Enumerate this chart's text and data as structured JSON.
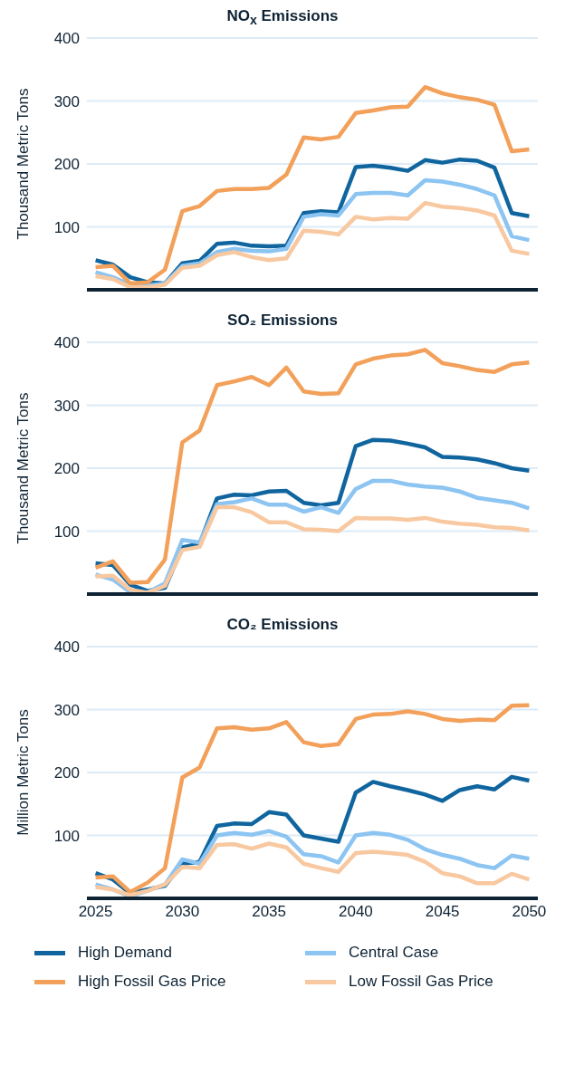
{
  "chart_data": [
    {
      "type": "line",
      "title": "NO$_{x}$ Emissions",
      "ylabel": "Thousand Metric Tons",
      "x": [
        2025,
        2026,
        2027,
        2028,
        2029,
        2030,
        2031,
        2032,
        2033,
        2034,
        2035,
        2036,
        2037,
        2038,
        2039,
        2040,
        2041,
        2042,
        2043,
        2044,
        2045,
        2046,
        2047,
        2048,
        2049,
        2050
      ],
      "xlim": [
        2024.5,
        2050.5
      ],
      "xticks": [
        2025,
        2030,
        2035,
        2040,
        2045,
        2050
      ],
      "ylim": [
        0,
        400
      ],
      "yticks": [
        100,
        200,
        300,
        400
      ],
      "grid": "y",
      "tick_labels": "y",
      "series": [
        {
          "color": "#10659f",
          "values": [
            47,
            40,
            20,
            12,
            10,
            42,
            46,
            73,
            75,
            70,
            69,
            70,
            122,
            125,
            123,
            195,
            197,
            194,
            189,
            206,
            202,
            207,
            205,
            194,
            122,
            117
          ]
        },
        {
          "color": "#8cc4f2",
          "values": [
            28,
            20,
            8,
            7,
            10,
            38,
            42,
            60,
            65,
            62,
            61,
            65,
            116,
            120,
            118,
            152,
            154,
            154,
            150,
            174,
            172,
            167,
            160,
            150,
            85,
            79
          ]
        },
        {
          "color": "#f2a05a",
          "values": [
            36,
            38,
            10,
            12,
            32,
            125,
            133,
            157,
            160,
            160,
            162,
            183,
            242,
            239,
            243,
            281,
            285,
            290,
            291,
            322,
            312,
            306,
            302,
            294,
            220,
            223
          ]
        },
        {
          "color": "#f8c8a0",
          "values": [
            22,
            17,
            4,
            4,
            8,
            35,
            38,
            55,
            60,
            52,
            47,
            50,
            94,
            92,
            88,
            116,
            112,
            114,
            113,
            138,
            132,
            130,
            126,
            118,
            62,
            57
          ]
        }
      ]
    },
    {
      "type": "line",
      "title": "SO₂ Emissions",
      "ylabel": "Thousand Metric Tons",
      "x": [
        2025,
        2026,
        2027,
        2028,
        2029,
        2030,
        2031,
        2032,
        2033,
        2034,
        2035,
        2036,
        2037,
        2038,
        2039,
        2040,
        2041,
        2042,
        2043,
        2044,
        2045,
        2046,
        2047,
        2048,
        2049,
        2050
      ],
      "xlim": [
        2024.5,
        2050.5
      ],
      "xticks": [
        2025,
        2030,
        2035,
        2040,
        2045,
        2050
      ],
      "ylim": [
        0,
        400
      ],
      "yticks": [
        100,
        200,
        300,
        400
      ],
      "grid": "y",
      "tick_labels": "y",
      "series": [
        {
          "color": "#10659f",
          "values": [
            49,
            46,
            15,
            5,
            10,
            74,
            80,
            152,
            158,
            157,
            163,
            164,
            145,
            141,
            145,
            235,
            245,
            244,
            239,
            233,
            218,
            217,
            214,
            208,
            200,
            196
          ]
        },
        {
          "color": "#8cc4f2",
          "values": [
            31,
            23,
            3,
            3,
            17,
            86,
            82,
            143,
            146,
            152,
            142,
            142,
            131,
            138,
            129,
            167,
            180,
            180,
            174,
            171,
            169,
            163,
            153,
            149,
            145,
            136
          ]
        },
        {
          "color": "#f2a05a",
          "values": [
            42,
            52,
            18,
            19,
            55,
            241,
            260,
            332,
            338,
            345,
            332,
            360,
            322,
            318,
            319,
            365,
            374,
            379,
            381,
            388,
            367,
            362,
            356,
            353,
            365,
            368
          ]
        },
        {
          "color": "#f8c8a0",
          "values": [
            28,
            29,
            7,
            2,
            13,
            70,
            75,
            138,
            138,
            130,
            114,
            114,
            103,
            102,
            100,
            121,
            120,
            120,
            118,
            121,
            115,
            112,
            110,
            106,
            105,
            101
          ]
        }
      ]
    },
    {
      "type": "line",
      "title": "CO₂ Emissions",
      "ylabel": "Million Metric Tons",
      "x": [
        2025,
        2026,
        2027,
        2028,
        2029,
        2030,
        2031,
        2032,
        2033,
        2034,
        2035,
        2036,
        2037,
        2038,
        2039,
        2040,
        2041,
        2042,
        2043,
        2044,
        2045,
        2046,
        2047,
        2048,
        2049,
        2050
      ],
      "xlim": [
        2024.5,
        2050.5
      ],
      "xticks": [
        2025,
        2030,
        2035,
        2040,
        2045,
        2050
      ],
      "ylim": [
        0,
        400
      ],
      "yticks": [
        100,
        200,
        300,
        400
      ],
      "grid": "y",
      "legend": "bottom",
      "series": [
        {
          "name": "High Demand",
          "color": "#10659f",
          "values": [
            40,
            30,
            8,
            14,
            20,
            55,
            58,
            115,
            119,
            118,
            137,
            133,
            100,
            95,
            90,
            168,
            185,
            178,
            172,
            165,
            155,
            172,
            178,
            173,
            193,
            187
          ]
        },
        {
          "name": "Central Case",
          "color": "#8cc4f2",
          "values": [
            22,
            14,
            3,
            12,
            22,
            62,
            55,
            100,
            104,
            101,
            107,
            98,
            70,
            67,
            57,
            100,
            104,
            101,
            93,
            78,
            69,
            63,
            53,
            48,
            68,
            63
          ]
        },
        {
          "name": "High Fossil Gas Price",
          "color": "#f2a05a",
          "values": [
            33,
            35,
            10,
            25,
            48,
            192,
            208,
            270,
            272,
            268,
            270,
            280,
            248,
            242,
            245,
            285,
            292,
            293,
            297,
            293,
            285,
            282,
            284,
            283,
            306,
            307
          ]
        },
        {
          "name": "Low Fossil Gas Price",
          "color": "#f8c8a0",
          "values": [
            18,
            14,
            5,
            12,
            22,
            50,
            48,
            85,
            86,
            79,
            87,
            81,
            55,
            48,
            42,
            72,
            74,
            72,
            69,
            58,
            40,
            35,
            24,
            24,
            39,
            30
          ]
        }
      ]
    }
  ]
}
